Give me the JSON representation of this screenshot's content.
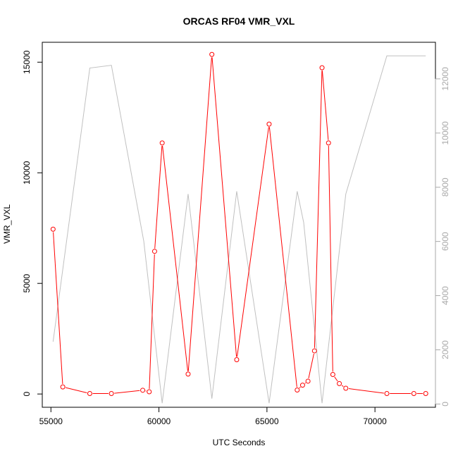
{
  "chart_data": {
    "type": "line",
    "title": "ORCAS RF04 VMR_VXL",
    "xlabel": "UTC Seconds",
    "ylabel": "VMR_VXL",
    "xlim": [
      54600,
      72800
    ],
    "ylim": [
      -600,
      15900
    ],
    "ylim_right": [
      -120,
      13350
    ],
    "x_ticks": [
      55000,
      60000,
      65000,
      70000
    ],
    "y_ticks": [
      0,
      5000,
      10000,
      15000
    ],
    "y_ticks_right": [
      0,
      2000,
      4000,
      6000,
      8000,
      10000,
      12000
    ],
    "grid": false,
    "legend": "none",
    "colors": {
      "primary": "#ff0000",
      "secondary": "#c0c0c0",
      "axis": "#000000",
      "right_axis": "#a9a9a9"
    },
    "series": [
      {
        "values": [
          {
            "x": 55100,
            "y": 7450
          },
          {
            "x": 55550,
            "y": 320
          },
          {
            "x": 56800,
            "y": 20
          },
          {
            "x": 57800,
            "y": 20
          },
          {
            "x": 59250,
            "y": 170
          },
          {
            "x": 59550,
            "y": 100
          },
          {
            "x": 59800,
            "y": 6450
          },
          {
            "x": 60150,
            "y": 11350
          },
          {
            "x": 61350,
            "y": 900
          },
          {
            "x": 62450,
            "y": 15350
          },
          {
            "x": 63600,
            "y": 1550
          },
          {
            "x": 65100,
            "y": 12200
          },
          {
            "x": 66400,
            "y": 180
          },
          {
            "x": 66650,
            "y": 400
          },
          {
            "x": 66900,
            "y": 580
          },
          {
            "x": 67200,
            "y": 1950
          },
          {
            "x": 67550,
            "y": 14750
          },
          {
            "x": 67850,
            "y": 11350
          },
          {
            "x": 68050,
            "y": 880
          },
          {
            "x": 68350,
            "y": 470
          },
          {
            "x": 68650,
            "y": 260
          },
          {
            "x": 70550,
            "y": 20
          },
          {
            "x": 71800,
            "y": 20
          },
          {
            "x": 72350,
            "y": 20
          }
        ]
      },
      {
        "values": [
          {
            "x": 55100,
            "y": 2300
          },
          {
            "x": 56800,
            "y": 12400
          },
          {
            "x": 57800,
            "y": 12500
          },
          {
            "x": 59300,
            "y": 6000
          },
          {
            "x": 60150,
            "y": 30
          },
          {
            "x": 61350,
            "y": 7750
          },
          {
            "x": 62450,
            "y": 200
          },
          {
            "x": 63600,
            "y": 7850
          },
          {
            "x": 65100,
            "y": 30
          },
          {
            "x": 66400,
            "y": 7850
          },
          {
            "x": 66700,
            "y": 6700
          },
          {
            "x": 67550,
            "y": 30
          },
          {
            "x": 68650,
            "y": 7750
          },
          {
            "x": 70550,
            "y": 12850
          },
          {
            "x": 72350,
            "y": 12850
          }
        ]
      }
    ]
  }
}
